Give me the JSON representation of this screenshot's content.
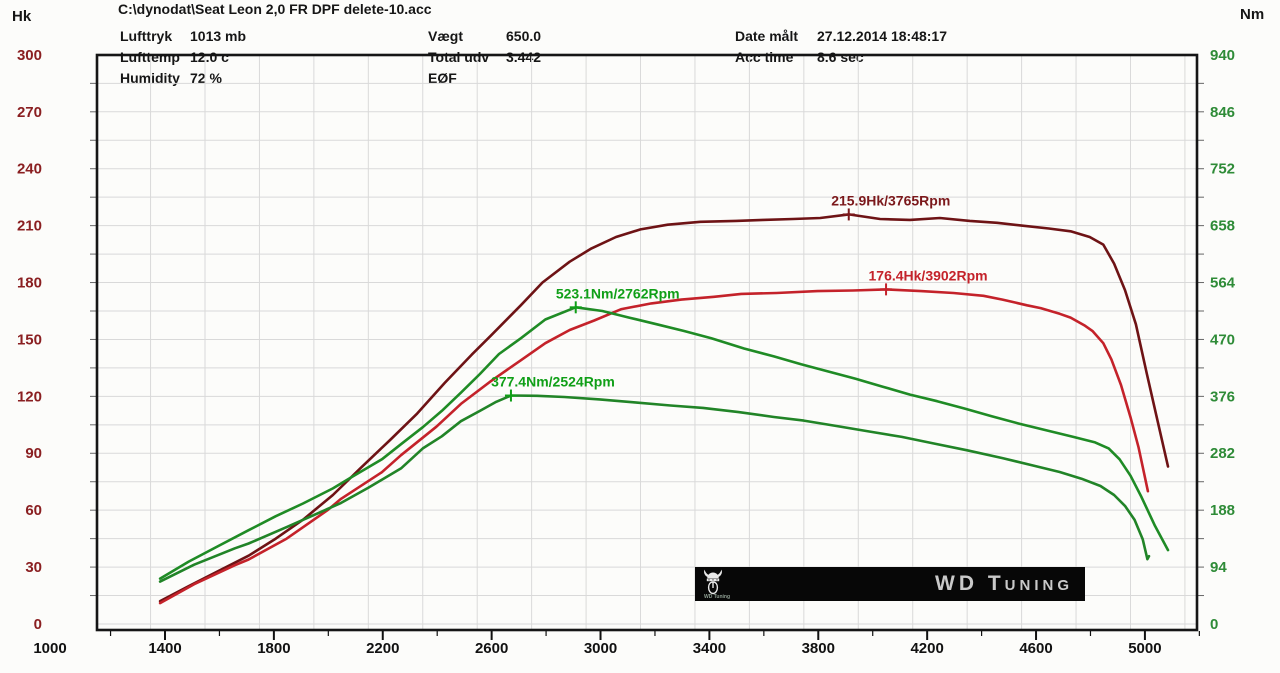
{
  "header": {
    "file_path": "C:\\dynodat\\Seat Leon 2,0 FR DPF delete-10.acc",
    "fields": {
      "lufttryk_label": "Lufttryk",
      "lufttryk_value": "1013 mb",
      "lufttemp_label": "Lufttemp",
      "lufttemp_value": "12.0 c",
      "humidity_label": "Humidity",
      "humidity_value": "72 %",
      "vaegt_label": "Vægt",
      "vaegt_value": "650.0",
      "total_udv_label": "Total udv",
      "total_udv_value": "3.442",
      "eof_label": "EØF",
      "date_label": "Date målt",
      "date_value": "27.12.2014 18:48:17",
      "acc_label": "Acc time",
      "acc_value": "8.6 sec"
    }
  },
  "logo": {
    "brand": "WD Tuning",
    "caption": "WD Tuning",
    "icon": "viking-helmet"
  },
  "chart_data": {
    "type": "line",
    "grid": true,
    "x_axis": {
      "origin_label": "1000",
      "major_tick_labels": [
        "1400",
        "1800",
        "2200",
        "2600",
        "3000",
        "3400",
        "3800",
        "4200",
        "4600",
        "5000"
      ],
      "major_ticks_rpm": [
        1400,
        1800,
        2200,
        2600,
        3000,
        3400,
        3800,
        4200,
        4600,
        5000
      ],
      "minor_step_rpm": 200,
      "range": [
        1000,
        5200
      ]
    },
    "y_left": {
      "unit": "Hk",
      "color": "#8a1f21",
      "tick_labels": [
        "300",
        "270",
        "240",
        "210",
        "180",
        "150",
        "120",
        "90",
        "60",
        "30",
        "0"
      ],
      "tick_values": [
        300,
        270,
        240,
        210,
        180,
        150,
        120,
        90,
        60,
        30,
        0
      ],
      "range": [
        0,
        300
      ]
    },
    "y_right": {
      "unit": "Nm",
      "color": "#2e8b37",
      "tick_labels": [
        "940",
        "846",
        "752",
        "658",
        "564",
        "470",
        "376",
        "282",
        "188",
        "94",
        "0"
      ],
      "tick_values": [
        940,
        846,
        752,
        658,
        564,
        470,
        376,
        282,
        188,
        94,
        0
      ],
      "range": [
        0,
        940
      ]
    },
    "annotations": [
      {
        "text": "215.9Hk/3765Rpm",
        "rpm": 3765,
        "value": 215.9,
        "axis": "left",
        "color": "#7b181b"
      },
      {
        "text": "176.4Hk/3902Rpm",
        "rpm": 3902,
        "value": 176.4,
        "axis": "left",
        "color": "#c4222a"
      },
      {
        "text": "523.1Nm/2762Rpm",
        "rpm": 2762,
        "value": 523.1,
        "axis": "right",
        "color": "#0f9f17"
      },
      {
        "text": "377.4Nm/2524Rpm",
        "rpm": 2524,
        "value": 377.4,
        "axis": "right",
        "color": "#0f9f17"
      }
    ],
    "series": [
      {
        "name": "power-tuned",
        "unit": "Hk",
        "axis": "left",
        "color": "#6e1315",
        "peak": "215.9 Hk @ 3765 rpm",
        "points": [
          [
            1235,
            12
          ],
          [
            1340,
            20
          ],
          [
            1450,
            28
          ],
          [
            1560,
            36
          ],
          [
            1660,
            45
          ],
          [
            1760,
            55
          ],
          [
            1870,
            68
          ],
          [
            1970,
            82
          ],
          [
            2080,
            97
          ],
          [
            2180,
            111
          ],
          [
            2280,
            127
          ],
          [
            2380,
            142
          ],
          [
            2450,
            152
          ],
          [
            2560,
            168
          ],
          [
            2640,
            180
          ],
          [
            2740,
            191
          ],
          [
            2820,
            198
          ],
          [
            2910,
            204
          ],
          [
            3000,
            208
          ],
          [
            3100,
            210.5
          ],
          [
            3220,
            212
          ],
          [
            3350,
            212.5
          ],
          [
            3450,
            213
          ],
          [
            3560,
            213.5
          ],
          [
            3660,
            214
          ],
          [
            3765,
            215.9
          ],
          [
            3880,
            213.5
          ],
          [
            3990,
            213
          ],
          [
            4100,
            214
          ],
          [
            4210,
            212.5
          ],
          [
            4310,
            211.5
          ],
          [
            4400,
            210
          ],
          [
            4500,
            208.5
          ],
          [
            4580,
            207
          ],
          [
            4650,
            204
          ],
          [
            4700,
            200
          ],
          [
            4740,
            190
          ],
          [
            4780,
            176
          ],
          [
            4820,
            158
          ],
          [
            4860,
            132
          ],
          [
            4895,
            110
          ],
          [
            4938,
            83
          ]
        ]
      },
      {
        "name": "power-stock",
        "unit": "Hk",
        "axis": "left",
        "color": "#c4222a",
        "peak": "176.4 Hk @ 3902 rpm",
        "points": [
          [
            1235,
            11
          ],
          [
            1360,
            21
          ],
          [
            1510,
            31
          ],
          [
            1560,
            34
          ],
          [
            1700,
            45
          ],
          [
            1850,
            60
          ],
          [
            1900,
            66
          ],
          [
            2050,
            80
          ],
          [
            2120,
            89
          ],
          [
            2250,
            104
          ],
          [
            2340,
            116
          ],
          [
            2450,
            128
          ],
          [
            2560,
            139
          ],
          [
            2650,
            148
          ],
          [
            2740,
            155
          ],
          [
            2830,
            160
          ],
          [
            2930,
            166
          ],
          [
            3040,
            169
          ],
          [
            3150,
            171
          ],
          [
            3270,
            172.5
          ],
          [
            3370,
            174
          ],
          [
            3500,
            174.5
          ],
          [
            3650,
            175.5
          ],
          [
            3780,
            175.8
          ],
          [
            3902,
            176.4
          ],
          [
            4030,
            175.5
          ],
          [
            4150,
            174.5
          ],
          [
            4260,
            173
          ],
          [
            4330,
            171
          ],
          [
            4420,
            168
          ],
          [
            4470,
            166.5
          ],
          [
            4540,
            163.5
          ],
          [
            4580,
            161.5
          ],
          [
            4630,
            157.5
          ],
          [
            4660,
            154.5
          ],
          [
            4700,
            148
          ],
          [
            4730,
            139.5
          ],
          [
            4765,
            126
          ],
          [
            4800,
            109
          ],
          [
            4830,
            93
          ],
          [
            4864,
            70
          ]
        ]
      },
      {
        "name": "torque-tuned",
        "unit": "Nm",
        "axis": "right",
        "color": "#1f8b25",
        "peak": "523.1 Nm @ 2762 rpm",
        "points": [
          [
            1235,
            75
          ],
          [
            1340,
            103
          ],
          [
            1450,
            129
          ],
          [
            1560,
            155
          ],
          [
            1660,
            178
          ],
          [
            1760,
            199
          ],
          [
            1870,
            224
          ],
          [
            1940,
            243
          ],
          [
            2050,
            272
          ],
          [
            2120,
            297
          ],
          [
            2200,
            325
          ],
          [
            2270,
            352
          ],
          [
            2340,
            382
          ],
          [
            2410,
            413
          ],
          [
            2480,
            446
          ],
          [
            2560,
            472
          ],
          [
            2650,
            503
          ],
          [
            2762,
            523.1
          ],
          [
            2860,
            517
          ],
          [
            2960,
            506
          ],
          [
            3060,
            495
          ],
          [
            3160,
            484
          ],
          [
            3260,
            472
          ],
          [
            3380,
            455
          ],
          [
            3490,
            442
          ],
          [
            3590,
            429
          ],
          [
            3690,
            417
          ],
          [
            3790,
            405
          ],
          [
            3890,
            392
          ],
          [
            3990,
            379
          ],
          [
            4090,
            368
          ],
          [
            4190,
            356
          ],
          [
            4290,
            343
          ],
          [
            4390,
            331
          ],
          [
            4490,
            320
          ],
          [
            4590,
            309
          ],
          [
            4670,
            300
          ],
          [
            4720,
            290
          ],
          [
            4760,
            272
          ],
          [
            4800,
            245
          ],
          [
            4840,
            210
          ],
          [
            4890,
            162
          ],
          [
            4938,
            122
          ]
        ]
      },
      {
        "name": "torque-stock",
        "unit": "Nm",
        "axis": "right",
        "color": "#218427",
        "peak": "377.4 Nm @ 2524 rpm",
        "points": [
          [
            1235,
            70
          ],
          [
            1360,
            98
          ],
          [
            1510,
            125
          ],
          [
            1560,
            133
          ],
          [
            1700,
            160
          ],
          [
            1850,
            190
          ],
          [
            1900,
            200
          ],
          [
            2000,
            225
          ],
          [
            2120,
            257
          ],
          [
            2200,
            290
          ],
          [
            2270,
            310
          ],
          [
            2340,
            335
          ],
          [
            2410,
            352
          ],
          [
            2470,
            367
          ],
          [
            2524,
            377.4
          ],
          [
            2620,
            377
          ],
          [
            2720,
            375
          ],
          [
            2850,
            371
          ],
          [
            2980,
            366
          ],
          [
            3110,
            361
          ],
          [
            3230,
            357
          ],
          [
            3360,
            350
          ],
          [
            3490,
            342
          ],
          [
            3600,
            336
          ],
          [
            3720,
            327
          ],
          [
            3840,
            318
          ],
          [
            3960,
            309
          ],
          [
            4080,
            298
          ],
          [
            4200,
            287
          ],
          [
            4330,
            274
          ],
          [
            4440,
            262
          ],
          [
            4540,
            251
          ],
          [
            4620,
            240
          ],
          [
            4690,
            228
          ],
          [
            4740,
            213
          ],
          [
            4780,
            195
          ],
          [
            4815,
            172
          ],
          [
            4845,
            140
          ],
          [
            4862,
            107
          ],
          [
            4868,
            112
          ]
        ]
      }
    ]
  }
}
